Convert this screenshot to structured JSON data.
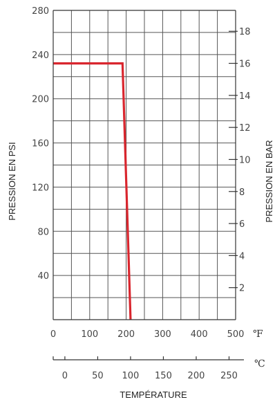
{
  "chart_data": {
    "type": "line",
    "title": "",
    "ylabel_left": "PRESSION EN PSI",
    "ylabel_right": "PRESSION EN BAR",
    "xlabel": "TEMPÉRATURE",
    "x_unit_f": "℉",
    "x_unit_c": "℃",
    "x_axis_f": {
      "min": 0,
      "max": 500,
      "ticks": [
        0,
        100,
        200,
        300,
        400,
        500
      ],
      "tick_labels": [
        "0",
        "100",
        "200",
        "300",
        "400",
        "500"
      ]
    },
    "x_axis_c": {
      "ticks": [
        0,
        50,
        100,
        150,
        200,
        250
      ],
      "tick_labels": [
        "0",
        "50",
        "100",
        "150",
        "200",
        "250"
      ]
    },
    "y_axis_psi": {
      "min": 0,
      "max": 280,
      "ticks": [
        40,
        80,
        120,
        160,
        200,
        240,
        280
      ],
      "tick_labels": [
        "40",
        "80",
        "120",
        "160",
        "200",
        "240",
        "280"
      ],
      "grid_every": 20
    },
    "y_axis_bar": {
      "ticks": [
        2,
        4,
        6,
        8,
        10,
        12,
        14,
        16,
        18
      ],
      "tick_labels": [
        "2",
        "4",
        "6",
        "8",
        "10",
        "12",
        "14",
        "16",
        "18"
      ]
    },
    "grid": true,
    "series": [
      {
        "color": "#d9262e",
        "x": [
          0,
          190,
          212
        ],
        "y": [
          232,
          232,
          0
        ]
      }
    ]
  }
}
